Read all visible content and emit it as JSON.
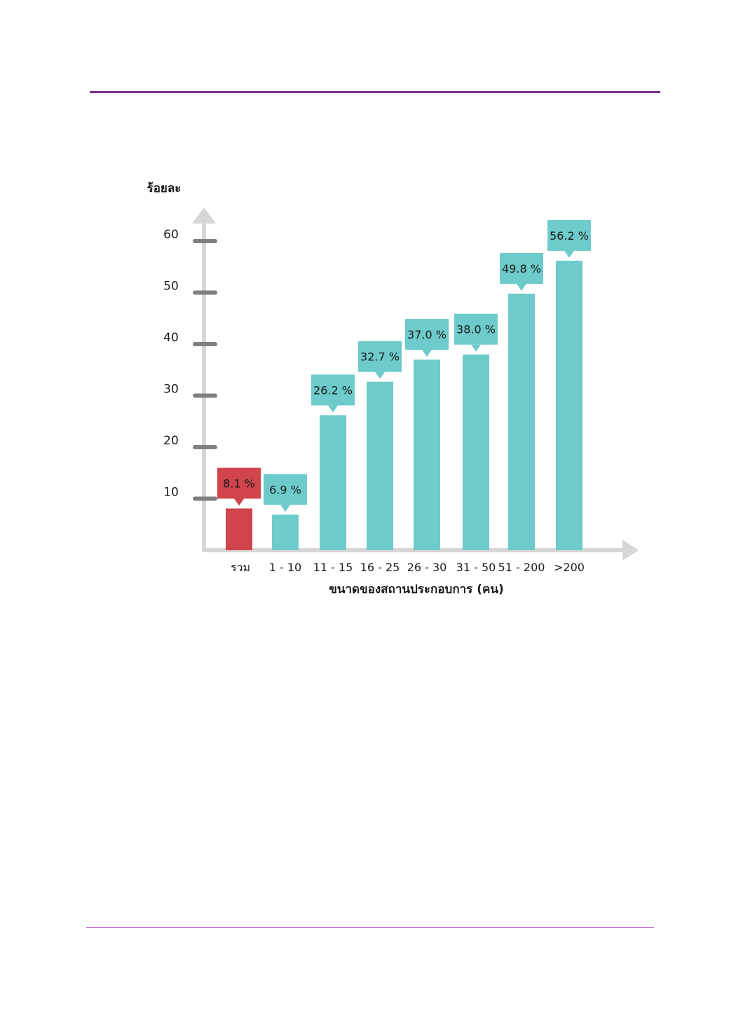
{
  "colors": {
    "top_rule": "#7a2f8e",
    "bottom_rule": "#c86ad0",
    "bar_total": "#d0454c",
    "bar": "#6ecbcb",
    "axis": "#d6d6d6",
    "tick": "#808080",
    "text": "#1a1a1a"
  },
  "chart_data": {
    "type": "bar",
    "ylabel": "ร้อยละ",
    "xlabel": "ขนาดของสถานประกอบการ (คน)",
    "yticks": [
      10,
      20,
      30,
      40,
      50,
      60
    ],
    "ylim": [
      0,
      64
    ],
    "grid": false,
    "categories": [
      "รวม",
      "1 - 10",
      "11 - 15",
      "16 - 25",
      "26 - 30",
      "31 - 50",
      "51 - 200",
      ">200"
    ],
    "values": [
      8.1,
      6.9,
      26.2,
      32.7,
      37.0,
      38.0,
      49.8,
      56.2
    ],
    "data_labels": [
      "8.1 %",
      "6.9 %",
      "26.2 %",
      "32.7 %",
      "37.0 %",
      "38.0 %",
      "49.8 %",
      "56.2 %"
    ]
  }
}
